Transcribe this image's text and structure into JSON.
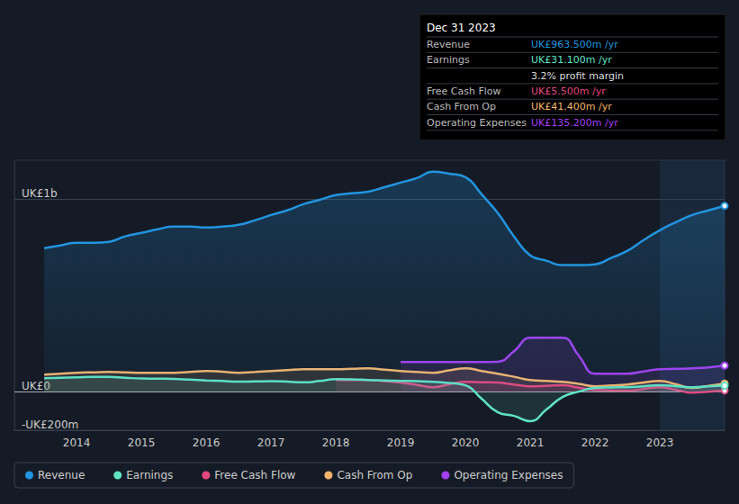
{
  "chart_data": {
    "type": "line",
    "x": [
      2013.5,
      2013.75,
      2014,
      2014.25,
      2014.5,
      2014.75,
      2015,
      2015.25,
      2015.5,
      2015.75,
      2016,
      2016.25,
      2016.5,
      2016.75,
      2017,
      2017.25,
      2017.5,
      2017.75,
      2018,
      2018.25,
      2018.5,
      2018.75,
      2019,
      2019.25,
      2019.5,
      2019.75,
      2020,
      2020.25,
      2020.5,
      2020.75,
      2021,
      2021.25,
      2021.5,
      2021.75,
      2022,
      2022.25,
      2022.5,
      2022.75,
      2023,
      2023.25,
      2023.5,
      2023.75,
      2024
    ],
    "xlim": [
      2013.04,
      2024
    ],
    "xticks": [
      2014,
      2015,
      2016,
      2017,
      2018,
      2019,
      2020,
      2021,
      2022,
      2023
    ],
    "ylim": [
      -200,
      1200
    ],
    "yticks": [
      {
        "value": -200,
        "label": "-UK£200m"
      },
      {
        "value": 0,
        "label": "UK£0"
      },
      {
        "value": 1000,
        "label": "UK£1b"
      }
    ],
    "grid": true,
    "legend": "bottom",
    "series": [
      {
        "name": "Revenue",
        "color": "#2394df",
        "values": [
          744,
          758,
          772,
          772,
          777,
          805,
          823,
          842,
          856,
          856,
          851,
          856,
          865,
          888,
          916,
          940,
          972,
          995,
          1019,
          1028,
          1037,
          1060,
          1084,
          1107,
          1140,
          1130,
          1112,
          1023,
          926,
          805,
          707,
          679,
          656,
          656,
          660,
          693,
          730,
          786,
          837,
          879,
          916,
          940,
          963.5
        ]
      },
      {
        "name": "Earnings",
        "color": "#5fe3c3",
        "values": [
          70,
          72,
          74,
          76,
          76,
          72,
          68,
          67,
          66,
          62,
          58,
          55,
          52,
          53,
          54,
          52,
          48,
          55,
          65,
          64,
          60,
          58,
          56,
          54,
          51,
          45,
          33,
          -37,
          -107,
          -126,
          -153,
          -93,
          -28,
          0,
          19,
          22,
          23,
          28,
          33,
          28,
          23,
          27,
          31.1
        ]
      },
      {
        "name": "Free Cash Flow",
        "color": "#e2487e",
        "values": [
          null,
          null,
          null,
          null,
          null,
          null,
          null,
          null,
          null,
          null,
          null,
          null,
          null,
          null,
          null,
          null,
          null,
          null,
          60,
          60,
          60,
          54,
          47,
          35,
          23,
          38,
          51,
          49,
          47,
          37,
          28,
          30,
          33,
          20,
          9,
          7,
          5,
          14,
          23,
          9,
          -5,
          0,
          5.5
        ]
      },
      {
        "name": "Cash From Op",
        "color": "#f3b46c",
        "values": [
          88,
          93,
          98,
          100,
          102,
          100,
          98,
          98,
          98,
          102,
          107,
          103,
          98,
          102,
          107,
          112,
          116,
          116,
          116,
          118,
          121,
          114,
          107,
          102,
          98,
          110,
          121,
          107,
          93,
          77,
          60,
          55,
          51,
          40,
          28,
          32,
          37,
          47,
          56,
          38,
          19,
          30,
          41.4
        ]
      },
      {
        "name": "Operating Expenses",
        "color": "#a53ff0",
        "values": [
          null,
          null,
          null,
          null,
          null,
          null,
          null,
          null,
          null,
          null,
          null,
          null,
          null,
          null,
          null,
          null,
          null,
          null,
          null,
          null,
          null,
          null,
          153,
          153,
          153,
          153,
          153,
          153,
          155,
          209,
          279,
          279,
          279,
          186,
          93,
          93,
          93,
          105,
          116,
          118,
          121,
          126,
          135.2
        ]
      }
    ],
    "annotation": {
      "title": "Dec 31 2023",
      "rows": [
        {
          "label": "Revenue",
          "value": "UK£963.500m /yr",
          "color": "#2394df"
        },
        {
          "label": "Earnings",
          "value": "UK£31.100m /yr",
          "color": "#5fe3c3"
        },
        {
          "value": "3.2% profit margin",
          "color": "#dddddd"
        },
        {
          "label": "Free Cash Flow",
          "value": "UK£5.500m /yr",
          "color": "#e2487e"
        },
        {
          "label": "Cash From Op",
          "value": "UK£41.400m /yr",
          "color": "#f3b46c"
        },
        {
          "label": "Operating Expenses",
          "value": "UK£135.200m /yr",
          "color": "#a53ff0"
        }
      ]
    }
  }
}
